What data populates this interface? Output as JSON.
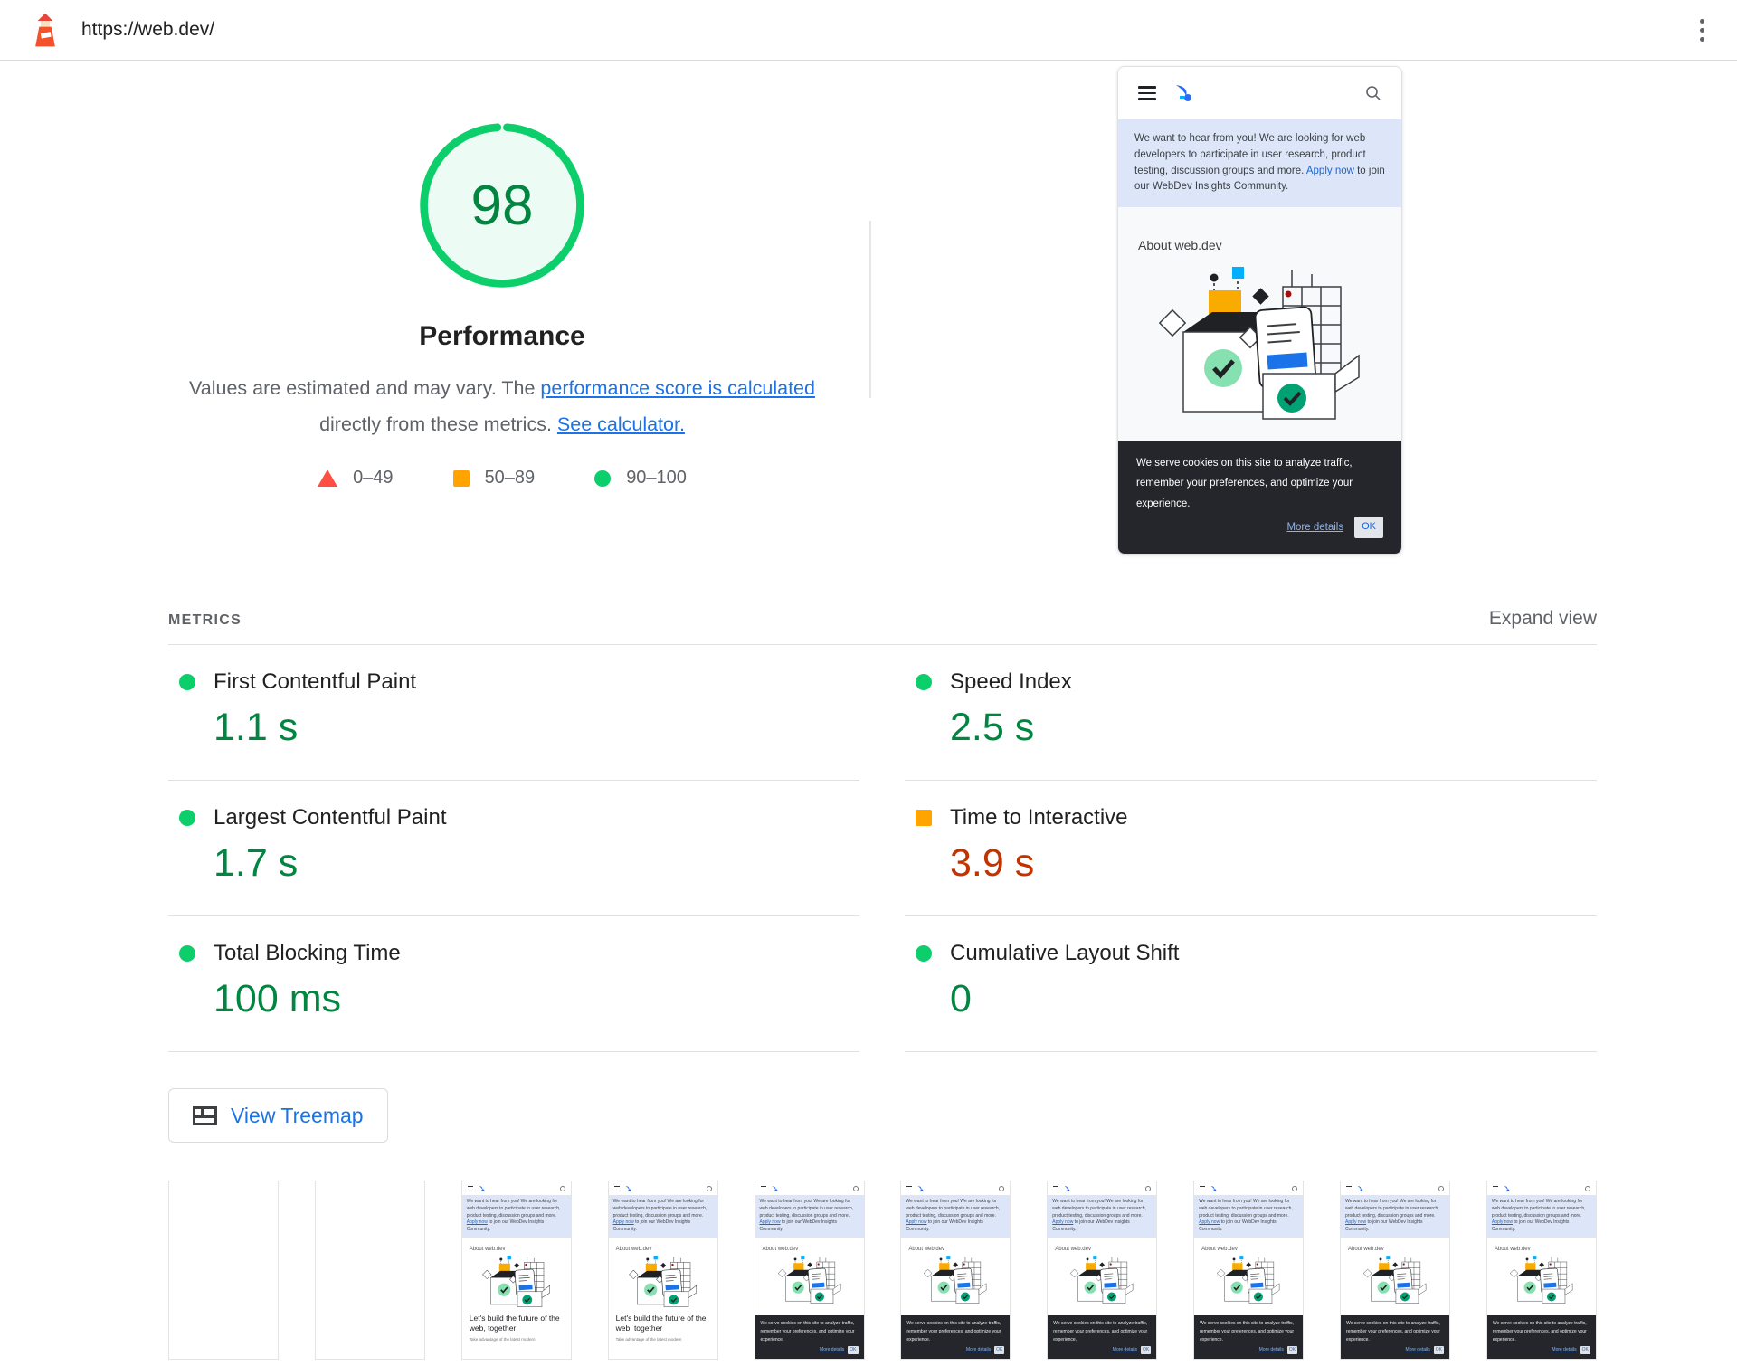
{
  "topbar": {
    "url": "https://web.dev/"
  },
  "score": {
    "value": "98",
    "title": "Performance",
    "description": {
      "text1": "Values are estimated and may vary. The ",
      "link1": "performance score is calculated",
      "text2": " directly from these metrics. ",
      "link2": "See calculator."
    },
    "legend": [
      {
        "shape": "triangle",
        "color": "#ff4e42",
        "label": "0–49"
      },
      {
        "shape": "square",
        "color": "#ffa400",
        "label": "50–89"
      },
      {
        "shape": "circle",
        "color": "#0cce6b",
        "label": "90–100"
      }
    ]
  },
  "preview": {
    "banner_text_before": "We want to hear from you! We are looking for web developers to participate in user research, product testing, discussion groups and more. ",
    "banner_link": "Apply now",
    "banner_text_after": " to join our WebDev Insights Community.",
    "about_heading": "About web.dev",
    "cookie_text": "We serve cookies on this site to analyze traffic, remember your preferences, and optimize your experience.",
    "cookie_link": "More details",
    "cookie_ok": "OK"
  },
  "metrics": {
    "section_title": "METRICS",
    "expand_label": "Expand view",
    "items": [
      {
        "label": "First Contentful Paint",
        "value": "1.1 s",
        "status": "pass"
      },
      {
        "label": "Speed Index",
        "value": "2.5 s",
        "status": "pass"
      },
      {
        "label": "Largest Contentful Paint",
        "value": "1.7 s",
        "status": "pass"
      },
      {
        "label": "Time to Interactive",
        "value": "3.9 s",
        "status": "average"
      },
      {
        "label": "Total Blocking Time",
        "value": "100 ms",
        "status": "pass"
      },
      {
        "label": "Cumulative Layout Shift",
        "value": "0",
        "status": "pass"
      }
    ]
  },
  "treemap_button": {
    "label": "View Treemap"
  },
  "filmstrip": {
    "thumbs": [
      "blank",
      "blank",
      "landing",
      "landing",
      "cookie",
      "cookie",
      "cookie",
      "cookie",
      "cookie",
      "cookie"
    ],
    "landing_title": "Let's build the future of the web, together",
    "landing_sub": "Take advantage of the latest modern"
  },
  "colors": {
    "pass": "#0cce6b",
    "pass_text": "#018642",
    "average": "#ffa400",
    "average_text": "#c33300",
    "fail": "#ff4e42",
    "link": "#1a73e8"
  }
}
